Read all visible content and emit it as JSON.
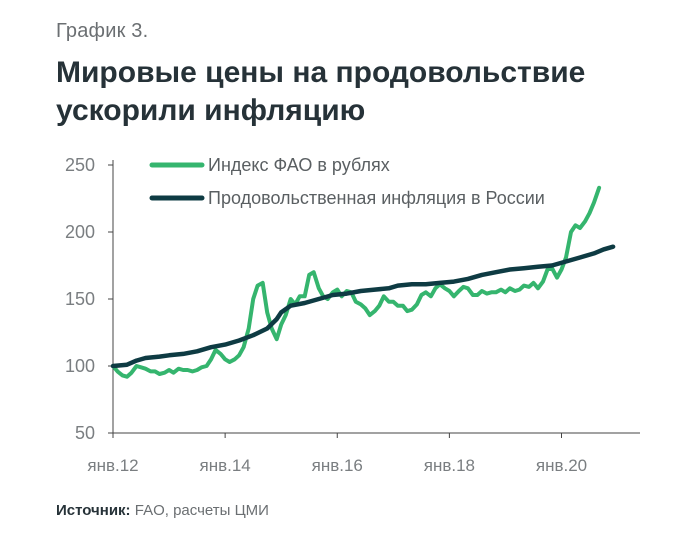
{
  "figure_label": "График 3.",
  "title": "Мировые цены на продовольствие ускорили инфляцию",
  "source": {
    "label": "Источник:",
    "text": "FAO, расчеты ЦМИ"
  },
  "colors": {
    "fao": "#35b56e",
    "inflation": "#0e3b43",
    "axis": "#444444",
    "text": "#7a7e81"
  },
  "chart_data": {
    "type": "line",
    "xlabel": "",
    "ylabel": "",
    "ylim": [
      50,
      250
    ],
    "yticks": [
      50,
      100,
      150,
      200,
      250
    ],
    "xlim": [
      2012,
      2021.4
    ],
    "xtick_labels": [
      {
        "x": 2012,
        "label": "янв.12"
      },
      {
        "x": 2014,
        "label": "янв.14"
      },
      {
        "x": 2016,
        "label": "янв.16"
      },
      {
        "x": 2018,
        "label": "янв.18"
      },
      {
        "x": 2020,
        "label": "янв.20"
      }
    ],
    "legend_position": "top",
    "series": [
      {
        "name": "Индекс ФАО в рублях",
        "key": "fao",
        "points": [
          [
            2012.0,
            100
          ],
          [
            2012.08,
            96
          ],
          [
            2012.17,
            93
          ],
          [
            2012.25,
            92
          ],
          [
            2012.33,
            95
          ],
          [
            2012.42,
            100
          ],
          [
            2012.5,
            99
          ],
          [
            2012.58,
            98
          ],
          [
            2012.67,
            96
          ],
          [
            2012.75,
            96
          ],
          [
            2012.83,
            94
          ],
          [
            2012.92,
            95
          ],
          [
            2013.0,
            97
          ],
          [
            2013.08,
            95
          ],
          [
            2013.17,
            98
          ],
          [
            2013.25,
            97
          ],
          [
            2013.33,
            97
          ],
          [
            2013.42,
            96
          ],
          [
            2013.5,
            97
          ],
          [
            2013.58,
            99
          ],
          [
            2013.67,
            100
          ],
          [
            2013.75,
            105
          ],
          [
            2013.83,
            112
          ],
          [
            2013.92,
            109
          ],
          [
            2014.0,
            105
          ],
          [
            2014.08,
            103
          ],
          [
            2014.17,
            105
          ],
          [
            2014.25,
            108
          ],
          [
            2014.33,
            114
          ],
          [
            2014.42,
            128
          ],
          [
            2014.5,
            150
          ],
          [
            2014.58,
            160
          ],
          [
            2014.67,
            162
          ],
          [
            2014.75,
            140
          ],
          [
            2014.83,
            128
          ],
          [
            2014.92,
            120
          ],
          [
            2015.0,
            131
          ],
          [
            2015.08,
            138
          ],
          [
            2015.17,
            150
          ],
          [
            2015.25,
            146
          ],
          [
            2015.33,
            152
          ],
          [
            2015.42,
            152
          ],
          [
            2015.5,
            168
          ],
          [
            2015.58,
            170
          ],
          [
            2015.67,
            158
          ],
          [
            2015.75,
            152
          ],
          [
            2015.83,
            150
          ],
          [
            2015.92,
            155
          ],
          [
            2016.0,
            157
          ],
          [
            2016.08,
            152
          ],
          [
            2016.17,
            156
          ],
          [
            2016.25,
            155
          ],
          [
            2016.33,
            148
          ],
          [
            2016.42,
            146
          ],
          [
            2016.5,
            143
          ],
          [
            2016.58,
            138
          ],
          [
            2016.67,
            141
          ],
          [
            2016.75,
            145
          ],
          [
            2016.83,
            152
          ],
          [
            2016.92,
            148
          ],
          [
            2017.0,
            148
          ],
          [
            2017.08,
            145
          ],
          [
            2017.17,
            145
          ],
          [
            2017.25,
            141
          ],
          [
            2017.33,
            142
          ],
          [
            2017.42,
            146
          ],
          [
            2017.5,
            153
          ],
          [
            2017.58,
            155
          ],
          [
            2017.67,
            152
          ],
          [
            2017.75,
            158
          ],
          [
            2017.83,
            161
          ],
          [
            2017.92,
            158
          ],
          [
            2018.0,
            156
          ],
          [
            2018.08,
            152
          ],
          [
            2018.17,
            156
          ],
          [
            2018.25,
            159
          ],
          [
            2018.33,
            158
          ],
          [
            2018.42,
            153
          ],
          [
            2018.5,
            153
          ],
          [
            2018.58,
            156
          ],
          [
            2018.67,
            154
          ],
          [
            2018.75,
            155
          ],
          [
            2018.83,
            155
          ],
          [
            2018.92,
            157
          ],
          [
            2019.0,
            155
          ],
          [
            2019.08,
            158
          ],
          [
            2019.17,
            156
          ],
          [
            2019.25,
            157
          ],
          [
            2019.33,
            160
          ],
          [
            2019.42,
            159
          ],
          [
            2019.5,
            162
          ],
          [
            2019.58,
            158
          ],
          [
            2019.67,
            163
          ],
          [
            2019.75,
            172
          ],
          [
            2019.83,
            173
          ],
          [
            2019.92,
            166
          ],
          [
            2020.0,
            172
          ],
          [
            2020.08,
            181
          ],
          [
            2020.17,
            200
          ],
          [
            2020.25,
            205
          ],
          [
            2020.33,
            203
          ],
          [
            2020.42,
            208
          ],
          [
            2020.5,
            214
          ],
          [
            2020.58,
            222
          ],
          [
            2020.67,
            233
          ]
        ]
      },
      {
        "name": "Продовольственная инфляция в России",
        "key": "inflation",
        "points": [
          [
            2012.0,
            100
          ],
          [
            2012.25,
            101
          ],
          [
            2012.42,
            104
          ],
          [
            2012.58,
            106
          ],
          [
            2012.83,
            107
          ],
          [
            2013.0,
            108
          ],
          [
            2013.25,
            109
          ],
          [
            2013.5,
            111
          ],
          [
            2013.75,
            114
          ],
          [
            2014.0,
            116
          ],
          [
            2014.25,
            119
          ],
          [
            2014.5,
            123
          ],
          [
            2014.75,
            128
          ],
          [
            2014.92,
            135
          ],
          [
            2015.0,
            140
          ],
          [
            2015.17,
            145
          ],
          [
            2015.42,
            147
          ],
          [
            2015.67,
            150
          ],
          [
            2015.92,
            153
          ],
          [
            2016.17,
            154
          ],
          [
            2016.42,
            156
          ],
          [
            2016.67,
            157
          ],
          [
            2016.92,
            158
          ],
          [
            2017.08,
            160
          ],
          [
            2017.33,
            161
          ],
          [
            2017.58,
            161
          ],
          [
            2017.83,
            162
          ],
          [
            2018.08,
            163
          ],
          [
            2018.33,
            165
          ],
          [
            2018.58,
            168
          ],
          [
            2018.83,
            170
          ],
          [
            2019.08,
            172
          ],
          [
            2019.33,
            173
          ],
          [
            2019.58,
            174
          ],
          [
            2019.83,
            175
          ],
          [
            2020.08,
            178
          ],
          [
            2020.33,
            181
          ],
          [
            2020.58,
            184
          ],
          [
            2020.75,
            187
          ],
          [
            2020.92,
            189
          ]
        ]
      }
    ]
  }
}
